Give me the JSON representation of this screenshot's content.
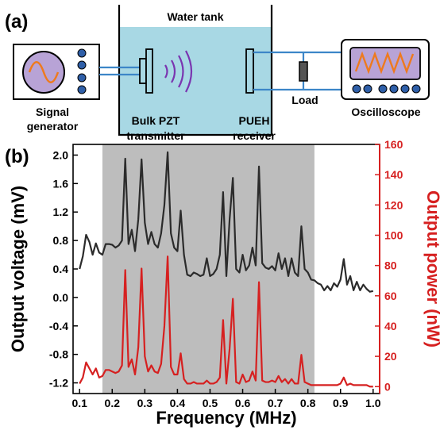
{
  "panel_a": {
    "label": "(a)",
    "tank_label": "Water tank",
    "signal_generator_label": [
      "Signal",
      "generator"
    ],
    "transmitter_label": [
      "Bulk PZT",
      "transmitter"
    ],
    "receiver_label": [
      "PUEH",
      "receiver"
    ],
    "load_label": "Load",
    "oscilloscope_label": "Oscilloscope",
    "colors": {
      "tank_water": "#a8d8e4",
      "wire": "#3c86c8",
      "knob": "#2f5fa8",
      "wave": "#ee7a1e",
      "screen": "#b8a3d6",
      "sound": "#7a35b0"
    }
  },
  "panel_b": {
    "label": "(b)"
  },
  "chart_data": {
    "type": "line",
    "xlabel": "Frequency (MHz)",
    "ylabel_left": "Output voltage (mV)",
    "ylabel_right": "Output power (nW)",
    "xlim": [
      0.08,
      1.02
    ],
    "ylim_left": [
      -1.35,
      2.15
    ],
    "ylim_right": [
      -4.57,
      160
    ],
    "x_ticks": [
      "0.1",
      "0.2",
      "0.3",
      "0.4",
      "0.5",
      "0.6",
      "0.7",
      "0.8",
      "0.9",
      "1.0"
    ],
    "y_ticks_left": [
      "-1.2",
      "-0.8",
      "-0.4",
      "0.0",
      "0.4",
      "0.8",
      "1.2",
      "1.6",
      "2.0"
    ],
    "y_ticks_right": [
      "0",
      "20",
      "40",
      "60",
      "80",
      "100",
      "120",
      "140",
      "160"
    ],
    "shaded_band": {
      "x_start": 0.17,
      "x_end": 0.82,
      "color": "#bdbdbd"
    },
    "series": [
      {
        "axis": "left",
        "color": "#2b2b2b",
        "points": [
          [
            0.1,
            0.4
          ],
          [
            0.11,
            0.58
          ],
          [
            0.12,
            0.88
          ],
          [
            0.13,
            0.78
          ],
          [
            0.14,
            0.6
          ],
          [
            0.15,
            0.76
          ],
          [
            0.16,
            0.63
          ],
          [
            0.17,
            0.6
          ],
          [
            0.18,
            0.75
          ],
          [
            0.19,
            0.75
          ],
          [
            0.2,
            0.74
          ],
          [
            0.21,
            0.7
          ],
          [
            0.22,
            0.73
          ],
          [
            0.23,
            0.8
          ],
          [
            0.24,
            1.95
          ],
          [
            0.25,
            0.75
          ],
          [
            0.26,
            0.95
          ],
          [
            0.27,
            0.65
          ],
          [
            0.28,
            1.1
          ],
          [
            0.29,
            1.94
          ],
          [
            0.3,
            1.05
          ],
          [
            0.31,
            0.75
          ],
          [
            0.32,
            0.92
          ],
          [
            0.33,
            0.75
          ],
          [
            0.34,
            0.7
          ],
          [
            0.35,
            0.9
          ],
          [
            0.36,
            1.3
          ],
          [
            0.37,
            2.04
          ],
          [
            0.38,
            0.9
          ],
          [
            0.39,
            0.7
          ],
          [
            0.4,
            0.65
          ],
          [
            0.41,
            1.22
          ],
          [
            0.42,
            0.6
          ],
          [
            0.43,
            0.32
          ],
          [
            0.44,
            0.3
          ],
          [
            0.45,
            0.35
          ],
          [
            0.46,
            0.33
          ],
          [
            0.47,
            0.3
          ],
          [
            0.48,
            0.32
          ],
          [
            0.49,
            0.55
          ],
          [
            0.5,
            0.3
          ],
          [
            0.51,
            0.33
          ],
          [
            0.52,
            0.4
          ],
          [
            0.53,
            0.6
          ],
          [
            0.54,
            1.48
          ],
          [
            0.55,
            0.3
          ],
          [
            0.56,
            1.1
          ],
          [
            0.57,
            1.68
          ],
          [
            0.58,
            0.4
          ],
          [
            0.59,
            0.35
          ],
          [
            0.6,
            0.6
          ],
          [
            0.61,
            0.38
          ],
          [
            0.62,
            0.45
          ],
          [
            0.63,
            0.7
          ],
          [
            0.64,
            0.45
          ],
          [
            0.65,
            1.84
          ],
          [
            0.66,
            0.48
          ],
          [
            0.67,
            0.42
          ],
          [
            0.68,
            0.4
          ],
          [
            0.69,
            0.44
          ],
          [
            0.7,
            0.38
          ],
          [
            0.71,
            0.62
          ],
          [
            0.72,
            0.4
          ],
          [
            0.73,
            0.55
          ],
          [
            0.74,
            0.3
          ],
          [
            0.75,
            0.55
          ],
          [
            0.76,
            0.35
          ],
          [
            0.77,
            0.3
          ],
          [
            0.78,
            1.0
          ],
          [
            0.79,
            0.4
          ],
          [
            0.8,
            0.35
          ],
          [
            0.81,
            0.25
          ],
          [
            0.82,
            0.24
          ],
          [
            0.83,
            0.2
          ],
          [
            0.84,
            0.18
          ],
          [
            0.85,
            0.1
          ],
          [
            0.86,
            0.16
          ],
          [
            0.87,
            0.1
          ],
          [
            0.88,
            0.2
          ],
          [
            0.89,
            0.15
          ],
          [
            0.9,
            0.25
          ],
          [
            0.91,
            0.54
          ],
          [
            0.92,
            0.18
          ],
          [
            0.93,
            0.3
          ],
          [
            0.94,
            0.1
          ],
          [
            0.95,
            0.22
          ],
          [
            0.96,
            0.1
          ],
          [
            0.97,
            0.18
          ],
          [
            0.98,
            0.12
          ],
          [
            0.99,
            0.08
          ],
          [
            1.0,
            0.09
          ]
        ]
      },
      {
        "axis": "right",
        "color": "#d62020",
        "points": [
          [
            0.1,
            2
          ],
          [
            0.11,
            6
          ],
          [
            0.12,
            16
          ],
          [
            0.13,
            12
          ],
          [
            0.14,
            8
          ],
          [
            0.15,
            12
          ],
          [
            0.16,
            6
          ],
          [
            0.17,
            7
          ],
          [
            0.18,
            11
          ],
          [
            0.19,
            11
          ],
          [
            0.2,
            10
          ],
          [
            0.21,
            9
          ],
          [
            0.22,
            10
          ],
          [
            0.23,
            14
          ],
          [
            0.24,
            77
          ],
          [
            0.25,
            13
          ],
          [
            0.26,
            18
          ],
          [
            0.27,
            8
          ],
          [
            0.28,
            26
          ],
          [
            0.29,
            78
          ],
          [
            0.3,
            20
          ],
          [
            0.31,
            10
          ],
          [
            0.32,
            14
          ],
          [
            0.33,
            10
          ],
          [
            0.34,
            9
          ],
          [
            0.35,
            15
          ],
          [
            0.36,
            40
          ],
          [
            0.37,
            86
          ],
          [
            0.38,
            13
          ],
          [
            0.39,
            8
          ],
          [
            0.4,
            8
          ],
          [
            0.41,
            22
          ],
          [
            0.42,
            5
          ],
          [
            0.43,
            2
          ],
          [
            0.44,
            2
          ],
          [
            0.45,
            3
          ],
          [
            0.46,
            2
          ],
          [
            0.47,
            2
          ],
          [
            0.48,
            2
          ],
          [
            0.49,
            4
          ],
          [
            0.5,
            2
          ],
          [
            0.51,
            2
          ],
          [
            0.52,
            3
          ],
          [
            0.53,
            6
          ],
          [
            0.54,
            44
          ],
          [
            0.55,
            2
          ],
          [
            0.56,
            25
          ],
          [
            0.57,
            58
          ],
          [
            0.58,
            3
          ],
          [
            0.59,
            2
          ],
          [
            0.6,
            8
          ],
          [
            0.61,
            3
          ],
          [
            0.62,
            4
          ],
          [
            0.63,
            10
          ],
          [
            0.64,
            4
          ],
          [
            0.65,
            69
          ],
          [
            0.66,
            4
          ],
          [
            0.67,
            3
          ],
          [
            0.68,
            3
          ],
          [
            0.69,
            4
          ],
          [
            0.7,
            3
          ],
          [
            0.71,
            7
          ],
          [
            0.72,
            3
          ],
          [
            0.73,
            5
          ],
          [
            0.74,
            2
          ],
          [
            0.75,
            5
          ],
          [
            0.76,
            2
          ],
          [
            0.77,
            2
          ],
          [
            0.78,
            21
          ],
          [
            0.79,
            3
          ],
          [
            0.8,
            2
          ],
          [
            0.81,
            1
          ],
          [
            0.82,
            1
          ],
          [
            0.83,
            1
          ],
          [
            0.84,
            1
          ],
          [
            0.85,
            1
          ],
          [
            0.86,
            1
          ],
          [
            0.87,
            1
          ],
          [
            0.88,
            1
          ],
          [
            0.89,
            1
          ],
          [
            0.9,
            2
          ],
          [
            0.91,
            6
          ],
          [
            0.92,
            1
          ],
          [
            0.93,
            2
          ],
          [
            0.94,
            1
          ],
          [
            0.95,
            1
          ],
          [
            0.96,
            1
          ],
          [
            0.97,
            1
          ],
          [
            0.98,
            1
          ],
          [
            0.99,
            0
          ],
          [
            1.0,
            0
          ]
        ]
      }
    ]
  }
}
